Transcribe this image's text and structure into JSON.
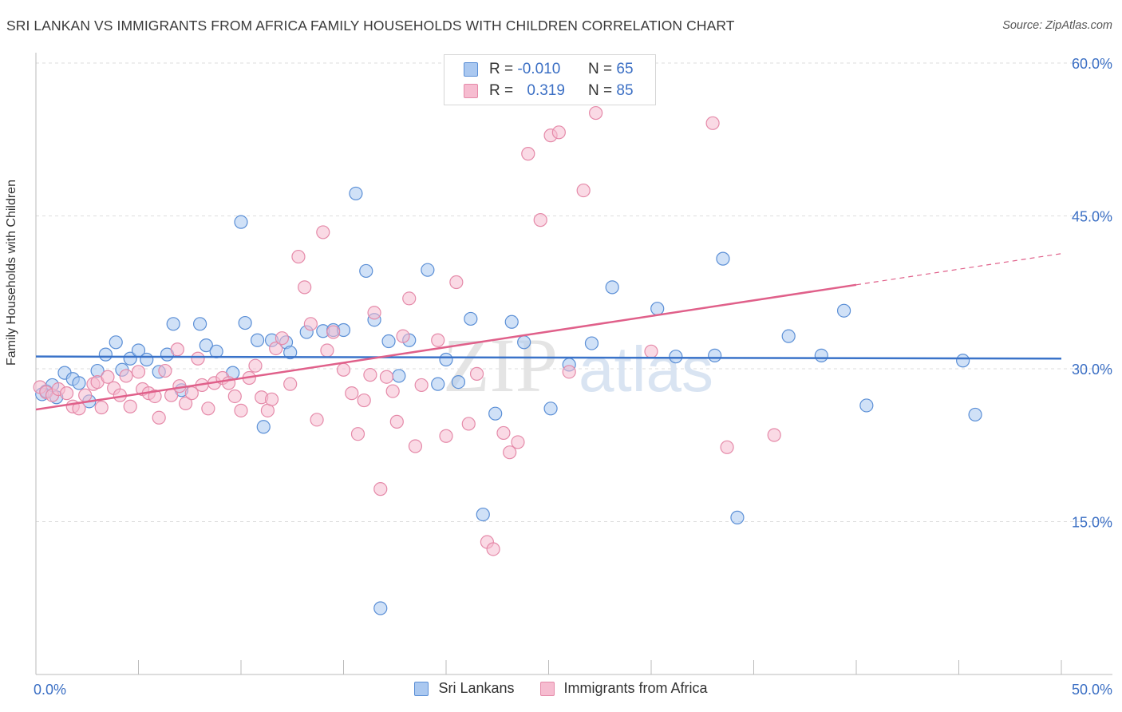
{
  "title": "SRI LANKAN VS IMMIGRANTS FROM AFRICA FAMILY HOUSEHOLDS WITH CHILDREN CORRELATION CHART",
  "source": "Source: ZipAtlas.com",
  "watermark": {
    "zip": "ZIP",
    "atlas": "atlas"
  },
  "legend": {
    "rows": [
      {
        "r_label": "R =",
        "r_value": "-0.010",
        "n_label": "N =",
        "n_value": "65"
      },
      {
        "r_label": "R =",
        "r_value": "0.319",
        "n_label": "N =",
        "n_value": "85"
      }
    ]
  },
  "colors": {
    "blue_fill": "#aac8f0",
    "blue_stroke": "#5b8fd6",
    "blue_line": "#3a73c9",
    "pink_fill": "#f6bcd0",
    "pink_stroke": "#e58aa9",
    "pink_line": "#e0608a",
    "tick_text": "#3b6fc4",
    "grid": "#dddddd"
  },
  "chart_data": {
    "type": "scatter",
    "title": "SRI LANKAN VS IMMIGRANTS FROM AFRICA FAMILY HOUSEHOLDS WITH CHILDREN CORRELATION CHART",
    "xlabel": "",
    "ylabel": "Family Households with Children",
    "xlim": [
      0,
      50
    ],
    "ylim": [
      0,
      60
    ],
    "x_tick_labels": [
      "0.0%",
      "50.0%"
    ],
    "y_ticks": [
      15,
      30,
      45,
      60
    ],
    "y_tick_labels": [
      "15.0%",
      "30.0%",
      "45.0%",
      "60.0%"
    ],
    "grid": true,
    "legend_position": "bottom",
    "series": [
      {
        "name": "Sri Lankans",
        "color": "#aac8f0",
        "trend": {
          "x": [
            0,
            50
          ],
          "y": [
            31.2,
            31.0
          ],
          "solid_until": 50
        },
        "points": [
          [
            0.3,
            27.5
          ],
          [
            0.5,
            27.8
          ],
          [
            0.8,
            28.4
          ],
          [
            1.0,
            27.2
          ],
          [
            1.4,
            29.6
          ],
          [
            1.8,
            29.0
          ],
          [
            2.1,
            28.6
          ],
          [
            2.6,
            26.8
          ],
          [
            3.0,
            29.8
          ],
          [
            3.4,
            31.4
          ],
          [
            3.9,
            32.6
          ],
          [
            4.2,
            29.9
          ],
          [
            4.6,
            31.0
          ],
          [
            5.0,
            31.8
          ],
          [
            5.4,
            30.9
          ],
          [
            6.0,
            29.7
          ],
          [
            6.4,
            31.4
          ],
          [
            6.7,
            34.4
          ],
          [
            7.1,
            27.9
          ],
          [
            8.0,
            34.4
          ],
          [
            8.3,
            32.3
          ],
          [
            8.8,
            31.7
          ],
          [
            9.6,
            29.6
          ],
          [
            10.0,
            44.4
          ],
          [
            10.2,
            34.5
          ],
          [
            10.8,
            32.8
          ],
          [
            11.1,
            24.3
          ],
          [
            11.5,
            32.8
          ],
          [
            12.2,
            32.6
          ],
          [
            12.4,
            31.6
          ],
          [
            13.2,
            33.6
          ],
          [
            14.0,
            33.7
          ],
          [
            14.5,
            33.8
          ],
          [
            15.0,
            33.8
          ],
          [
            15.6,
            47.2
          ],
          [
            16.1,
            39.6
          ],
          [
            16.5,
            34.8
          ],
          [
            16.8,
            6.5
          ],
          [
            17.2,
            32.7
          ],
          [
            17.7,
            29.3
          ],
          [
            18.2,
            32.8
          ],
          [
            19.1,
            39.7
          ],
          [
            19.6,
            28.5
          ],
          [
            20.0,
            30.9
          ],
          [
            20.6,
            28.7
          ],
          [
            21.2,
            34.9
          ],
          [
            21.8,
            15.7
          ],
          [
            22.4,
            25.6
          ],
          [
            23.2,
            34.6
          ],
          [
            23.8,
            32.6
          ],
          [
            25.1,
            26.1
          ],
          [
            26.0,
            30.4
          ],
          [
            27.1,
            32.5
          ],
          [
            28.1,
            38.0
          ],
          [
            30.3,
            35.9
          ],
          [
            31.2,
            31.2
          ],
          [
            33.1,
            31.3
          ],
          [
            33.5,
            40.8
          ],
          [
            34.2,
            15.4
          ],
          [
            36.7,
            33.2
          ],
          [
            38.3,
            31.3
          ],
          [
            39.4,
            35.7
          ],
          [
            40.5,
            26.4
          ],
          [
            45.2,
            30.8
          ],
          [
            45.8,
            25.5
          ]
        ]
      },
      {
        "name": "Immigrants from Africa",
        "color": "#f6bcd0",
        "trend": {
          "x": [
            0,
            50
          ],
          "y": [
            26.0,
            41.3
          ],
          "solid_until": 40
        },
        "points": [
          [
            0.2,
            28.2
          ],
          [
            0.5,
            27.7
          ],
          [
            0.8,
            27.4
          ],
          [
            1.1,
            28.0
          ],
          [
            1.5,
            27.6
          ],
          [
            1.8,
            26.3
          ],
          [
            2.1,
            26.1
          ],
          [
            2.4,
            27.4
          ],
          [
            2.8,
            28.5
          ],
          [
            3.0,
            28.7
          ],
          [
            3.2,
            26.2
          ],
          [
            3.5,
            29.2
          ],
          [
            3.8,
            28.1
          ],
          [
            4.1,
            27.4
          ],
          [
            4.4,
            29.3
          ],
          [
            4.6,
            26.3
          ],
          [
            5.0,
            29.7
          ],
          [
            5.2,
            28.0
          ],
          [
            5.5,
            27.6
          ],
          [
            5.8,
            27.3
          ],
          [
            6.0,
            25.2
          ],
          [
            6.3,
            29.8
          ],
          [
            6.6,
            27.4
          ],
          [
            7.0,
            28.3
          ],
          [
            7.3,
            26.6
          ],
          [
            7.6,
            27.6
          ],
          [
            7.9,
            31.0
          ],
          [
            8.1,
            28.4
          ],
          [
            8.4,
            26.1
          ],
          [
            8.7,
            28.6
          ],
          [
            9.1,
            29.1
          ],
          [
            9.4,
            28.6
          ],
          [
            9.7,
            27.3
          ],
          [
            10.0,
            25.9
          ],
          [
            10.4,
            29.1
          ],
          [
            10.7,
            30.3
          ],
          [
            11.0,
            27.2
          ],
          [
            11.3,
            25.9
          ],
          [
            11.7,
            32.0
          ],
          [
            12.0,
            33.0
          ],
          [
            12.4,
            28.5
          ],
          [
            12.8,
            41.0
          ],
          [
            13.1,
            38.0
          ],
          [
            13.4,
            34.4
          ],
          [
            13.7,
            25.0
          ],
          [
            14.0,
            43.4
          ],
          [
            14.2,
            31.8
          ],
          [
            14.5,
            33.6
          ],
          [
            15.0,
            29.9
          ],
          [
            15.4,
            27.6
          ],
          [
            15.7,
            23.6
          ],
          [
            16.0,
            26.9
          ],
          [
            16.3,
            29.4
          ],
          [
            16.5,
            35.5
          ],
          [
            16.8,
            18.2
          ],
          [
            17.1,
            29.2
          ],
          [
            17.4,
            27.8
          ],
          [
            17.6,
            24.8
          ],
          [
            17.9,
            33.2
          ],
          [
            18.2,
            36.9
          ],
          [
            18.5,
            22.4
          ],
          [
            18.8,
            28.4
          ],
          [
            20.0,
            23.4
          ],
          [
            20.5,
            38.5
          ],
          [
            21.1,
            24.6
          ],
          [
            21.5,
            29.5
          ],
          [
            22.0,
            13.0
          ],
          [
            22.3,
            12.3
          ],
          [
            22.8,
            23.7
          ],
          [
            23.1,
            21.8
          ],
          [
            23.5,
            22.8
          ],
          [
            24.0,
            51.1
          ],
          [
            24.6,
            44.6
          ],
          [
            25.1,
            52.9
          ],
          [
            25.5,
            53.2
          ],
          [
            26.0,
            29.7
          ],
          [
            26.7,
            47.5
          ],
          [
            27.3,
            55.1
          ],
          [
            30.0,
            31.7
          ],
          [
            33.0,
            54.1
          ],
          [
            33.7,
            22.3
          ],
          [
            36.0,
            23.5
          ],
          [
            19.6,
            32.8
          ],
          [
            11.5,
            27.0
          ],
          [
            6.9,
            31.9
          ]
        ]
      }
    ]
  }
}
